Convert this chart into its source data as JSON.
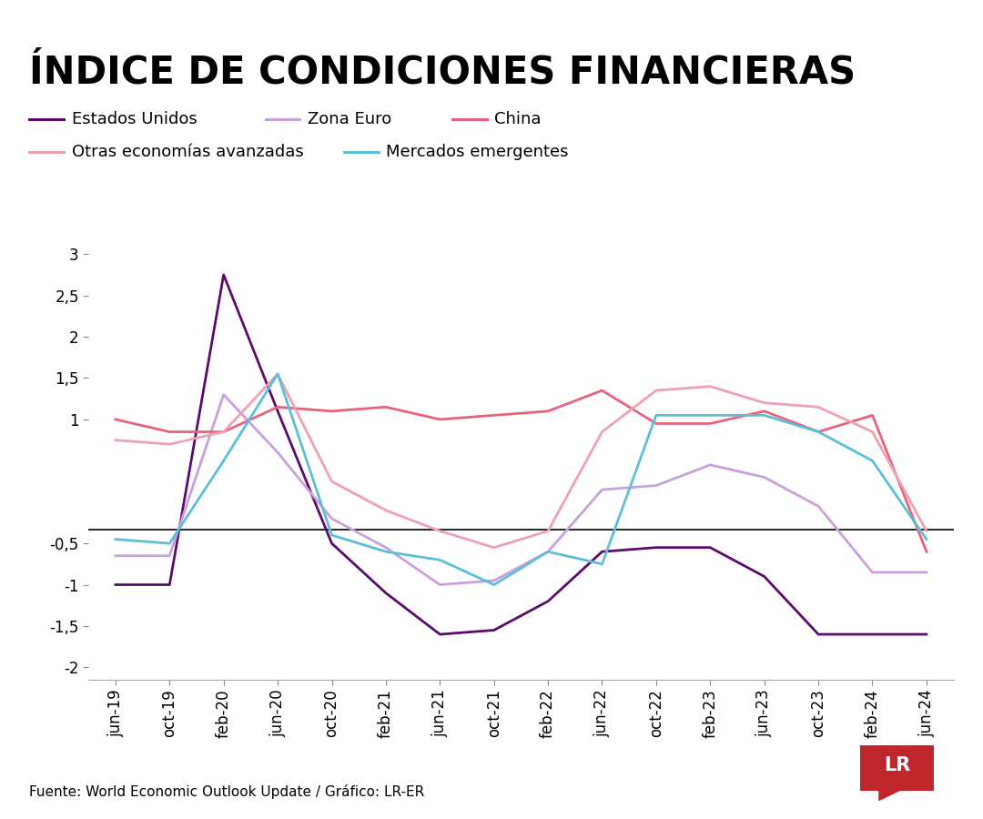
{
  "title": "ÍNDICE DE CONDICIONES FINANCIERAS",
  "source": "Fuente: World Economic Outlook Update / Gráfico: LR-ER",
  "x_labels": [
    "jun-19",
    "oct-19",
    "feb-20",
    "jun-20",
    "oct-20",
    "feb-21",
    "jun-21",
    "oct-21",
    "feb-22",
    "jun-22",
    "oct-22",
    "feb-23",
    "jun-23",
    "oct-23",
    "feb-24",
    "jun-24"
  ],
  "series": {
    "Estados Unidos": {
      "color": "#5b0a6e",
      "values": [
        -1.0,
        -1.0,
        2.75,
        1.1,
        -0.5,
        -1.1,
        -1.6,
        -1.55,
        -1.2,
        -0.6,
        -0.55,
        -0.55,
        -0.9,
        -1.6,
        -1.6,
        -1.6
      ]
    },
    "Zona Euro": {
      "color": "#c9a0dc",
      "values": [
        -0.65,
        -0.65,
        1.3,
        0.6,
        -0.2,
        -0.55,
        -1.0,
        -0.95,
        -0.6,
        0.15,
        0.2,
        0.45,
        0.3,
        -0.05,
        -0.85,
        -0.85
      ]
    },
    "China": {
      "color": "#e8637a",
      "values": [
        1.0,
        0.85,
        0.85,
        1.15,
        1.1,
        1.15,
        1.0,
        1.05,
        1.1,
        1.35,
        0.95,
        0.95,
        1.1,
        0.85,
        1.05,
        -0.6
      ]
    },
    "Otras economías avanzadas": {
      "color": "#f0a0b0",
      "values": [
        0.75,
        0.7,
        0.85,
        1.55,
        0.25,
        -0.1,
        -0.35,
        -0.55,
        -0.35,
        0.85,
        1.35,
        1.4,
        1.2,
        1.15,
        0.85,
        -0.35
      ]
    },
    "Mercados emergentes": {
      "color": "#5bbfd8",
      "values": [
        -0.45,
        -0.5,
        0.5,
        1.55,
        -0.4,
        -0.6,
        -0.7,
        -1.0,
        -0.6,
        -0.75,
        1.05,
        1.05,
        1.05,
        0.85,
        0.5,
        -0.45
      ]
    }
  },
  "ylim": [
    -2.15,
    3.3
  ],
  "yticks": [
    -2.0,
    -1.5,
    -1.0,
    -0.5,
    1.0,
    1.5,
    2.0,
    2.5,
    3.0
  ],
  "ytick_labels": [
    "-2",
    "-1,5",
    "-1",
    "-0,5",
    "1",
    "1,5",
    "2",
    "2,5",
    "3"
  ],
  "hline_y": -0.33,
  "background_color": "#ffffff",
  "title_fontsize": 30,
  "legend_fontsize": 13,
  "tick_fontsize": 12,
  "source_fontsize": 11,
  "top_bar_color": "#111111",
  "lr_bg_color": "#c0272d",
  "lr_text_color": "#ffffff"
}
